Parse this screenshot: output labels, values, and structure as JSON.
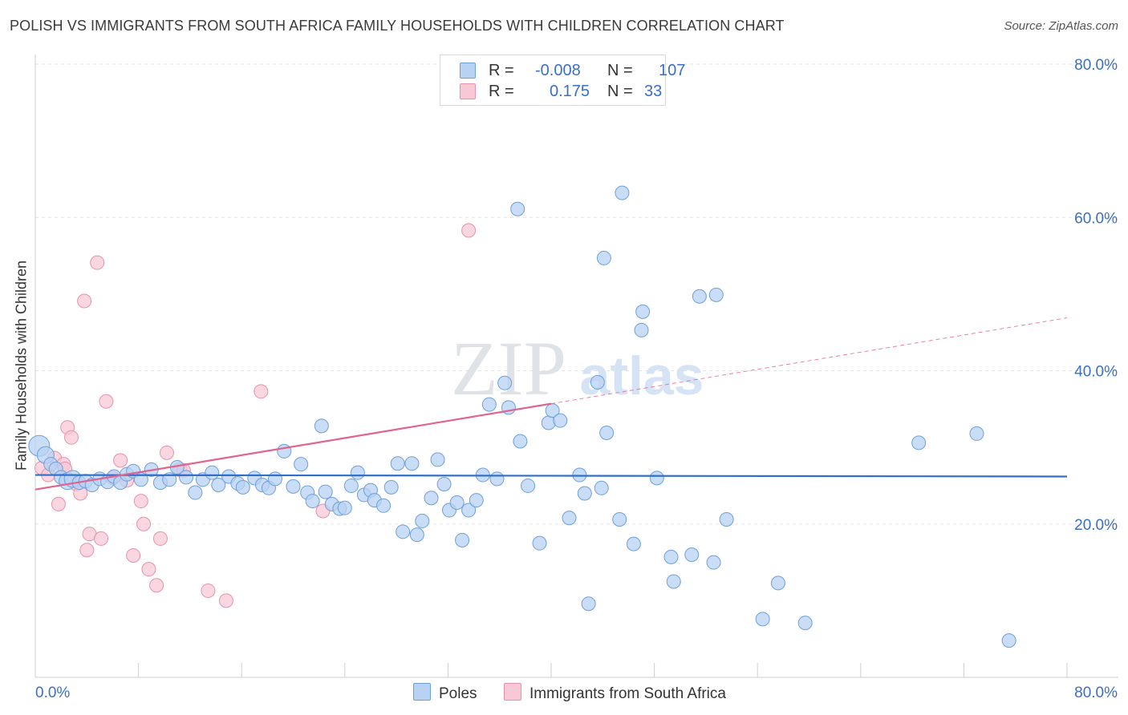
{
  "header": {
    "title": "POLISH VS IMMIGRANTS FROM SOUTH AFRICA FAMILY HOUSEHOLDS WITH CHILDREN CORRELATION CHART",
    "source": "Source: ZipAtlas.com"
  },
  "watermark": {
    "zip": "ZIP",
    "atlas": "atlas"
  },
  "stats_legend": {
    "rows": [
      {
        "r_label": "R =",
        "r_value": "-0.008",
        "n_label": "N =",
        "n_value": "107"
      },
      {
        "r_label": "R =",
        "r_value": "0.175",
        "n_label": "N =",
        "n_value": "33"
      }
    ]
  },
  "bottom_legend": {
    "series1": "Poles",
    "series2": "Immigrants from South Africa"
  },
  "colors": {
    "poles_fill": "#b8d2f3",
    "poles_stroke": "#6e9fdb",
    "poles_line": "#2f6fc9",
    "sa_fill": "#f8c8d6",
    "sa_stroke": "#e592ac",
    "sa_line": "#e0648e",
    "accent_text": "#3a6fc4"
  },
  "chart_data": {
    "type": "scatter",
    "title": "POLISH VS IMMIGRANTS FROM SOUTH AFRICA FAMILY HOUSEHOLDS WITH CHILDREN CORRELATION CHART",
    "xlabel": "",
    "ylabel": "Family Households with Children",
    "xlim": [
      0,
      80
    ],
    "ylim": [
      0,
      80
    ],
    "x_tick_labels": [
      "0.0%",
      "80.0%"
    ],
    "y_tick_labels": [
      "20.0%",
      "40.0%",
      "60.0%",
      "80.0%"
    ],
    "y_ticks": [
      20,
      40,
      60,
      80
    ],
    "grid": true,
    "legend": "top-center",
    "series": [
      {
        "name": "Poles",
        "trend": {
          "x": [
            0,
            80
          ],
          "y": [
            26.4,
            26.2
          ]
        },
        "points": [
          [
            0.3,
            30.2,
            9
          ],
          [
            0.8,
            29.0,
            6
          ],
          [
            1.2,
            27.8,
            5
          ],
          [
            1.6,
            27.2,
            5
          ],
          [
            2.0,
            26.1,
            5
          ],
          [
            2.5,
            25.6,
            6
          ],
          [
            2.9,
            25.9,
            6
          ],
          [
            3.4,
            25.4,
            5
          ],
          [
            3.9,
            25.6,
            5
          ],
          [
            4.4,
            25.1,
            5
          ],
          [
            5.0,
            25.9,
            5
          ],
          [
            5.6,
            25.5,
            5
          ],
          [
            6.1,
            26.2,
            5
          ],
          [
            6.6,
            25.4,
            5
          ],
          [
            7.1,
            26.5,
            5
          ],
          [
            7.6,
            26.9,
            5
          ],
          [
            8.2,
            25.8,
            5
          ],
          [
            9.0,
            27.1,
            5
          ],
          [
            9.7,
            25.4,
            5
          ],
          [
            10.4,
            25.8,
            5
          ],
          [
            11.0,
            27.4,
            5
          ],
          [
            11.7,
            26.1,
            5
          ],
          [
            12.4,
            24.1,
            5
          ],
          [
            13.0,
            25.8,
            5
          ],
          [
            13.7,
            26.7,
            5
          ],
          [
            14.2,
            25.1,
            5
          ],
          [
            15.0,
            26.2,
            5
          ],
          [
            15.7,
            25.3,
            5
          ],
          [
            16.1,
            24.8,
            5
          ],
          [
            17.0,
            26.0,
            5
          ],
          [
            17.6,
            25.1,
            5
          ],
          [
            18.1,
            24.7,
            5
          ],
          [
            18.6,
            25.9,
            5
          ],
          [
            19.3,
            29.5,
            5
          ],
          [
            20.0,
            24.9,
            5
          ],
          [
            20.6,
            27.8,
            5
          ],
          [
            21.1,
            24.1,
            5
          ],
          [
            21.5,
            23.0,
            5
          ],
          [
            22.2,
            32.8,
            5
          ],
          [
            22.5,
            24.2,
            5
          ],
          [
            23.0,
            22.6,
            5
          ],
          [
            23.6,
            22.0,
            5
          ],
          [
            24.0,
            22.1,
            5
          ],
          [
            24.5,
            25.0,
            5
          ],
          [
            25.0,
            26.7,
            5
          ],
          [
            25.5,
            23.8,
            5
          ],
          [
            26.0,
            24.4,
            5
          ],
          [
            26.3,
            23.1,
            5
          ],
          [
            27.0,
            22.4,
            5
          ],
          [
            27.6,
            24.8,
            5
          ],
          [
            28.1,
            27.9,
            5
          ],
          [
            28.5,
            19.0,
            5
          ],
          [
            29.2,
            27.9,
            5
          ],
          [
            29.6,
            18.6,
            5
          ],
          [
            30.0,
            20.4,
            5
          ],
          [
            30.7,
            23.4,
            5
          ],
          [
            31.2,
            28.4,
            5
          ],
          [
            31.7,
            25.2,
            5
          ],
          [
            32.1,
            21.8,
            5
          ],
          [
            32.7,
            22.8,
            5
          ],
          [
            33.1,
            17.9,
            5
          ],
          [
            33.6,
            21.8,
            5
          ],
          [
            34.2,
            23.1,
            5
          ],
          [
            34.7,
            26.4,
            5
          ],
          [
            35.2,
            35.6,
            5
          ],
          [
            35.8,
            25.9,
            5
          ],
          [
            36.4,
            38.4,
            5
          ],
          [
            36.7,
            35.2,
            5
          ],
          [
            37.4,
            61.1,
            5
          ],
          [
            37.6,
            30.8,
            5
          ],
          [
            38.2,
            25.0,
            5
          ],
          [
            39.1,
            17.5,
            5
          ],
          [
            39.8,
            33.2,
            5
          ],
          [
            40.1,
            34.8,
            5
          ],
          [
            40.7,
            33.5,
            5
          ],
          [
            41.4,
            20.8,
            5
          ],
          [
            42.2,
            26.4,
            5
          ],
          [
            42.6,
            24.0,
            5
          ],
          [
            42.9,
            9.6,
            5
          ],
          [
            43.6,
            38.5,
            5
          ],
          [
            43.9,
            24.7,
            5
          ],
          [
            44.1,
            54.7,
            5
          ],
          [
            44.3,
            31.9,
            5
          ],
          [
            45.3,
            20.6,
            5
          ],
          [
            45.5,
            63.2,
            5
          ],
          [
            46.4,
            17.4,
            5
          ],
          [
            47.1,
            47.7,
            5
          ],
          [
            47.0,
            45.3,
            5
          ],
          [
            48.2,
            26.0,
            5
          ],
          [
            49.3,
            15.7,
            5
          ],
          [
            49.5,
            12.5,
            5
          ],
          [
            50.9,
            16.0,
            5
          ],
          [
            51.5,
            49.7,
            5
          ],
          [
            52.6,
            15.0,
            5
          ],
          [
            52.8,
            49.9,
            5
          ],
          [
            53.6,
            20.6,
            5
          ],
          [
            56.4,
            7.6,
            5
          ],
          [
            57.6,
            12.3,
            5
          ],
          [
            59.7,
            7.1,
            5
          ],
          [
            68.5,
            30.6,
            5
          ],
          [
            73.0,
            31.8,
            5
          ],
          [
            75.5,
            4.8,
            5
          ]
        ]
      },
      {
        "name": "Immigrants from South Africa",
        "trend": {
          "x": [
            0,
            40
          ],
          "y": [
            24.5,
            35.7
          ],
          "dashed_to": {
            "x": 80,
            "y": 46.9
          }
        },
        "points": [
          [
            0.5,
            27.3,
            6
          ],
          [
            1.0,
            26.4,
            5
          ],
          [
            1.5,
            28.6,
            5
          ],
          [
            1.8,
            22.6,
            5
          ],
          [
            2.2,
            27.8,
            5
          ],
          [
            2.5,
            32.6,
            5
          ],
          [
            2.8,
            31.3,
            5
          ],
          [
            3.2,
            25.2,
            5
          ],
          [
            3.5,
            24.0,
            5
          ],
          [
            3.8,
            49.1,
            5
          ],
          [
            4.0,
            16.6,
            5
          ],
          [
            4.2,
            18.7,
            5
          ],
          [
            4.8,
            54.1,
            5
          ],
          [
            5.1,
            18.1,
            5
          ],
          [
            5.5,
            36.0,
            5
          ],
          [
            6.0,
            26.0,
            5
          ],
          [
            6.6,
            28.3,
            5
          ],
          [
            7.1,
            25.7,
            5
          ],
          [
            7.6,
            15.9,
            5
          ],
          [
            8.2,
            23.0,
            5
          ],
          [
            8.4,
            20.0,
            5
          ],
          [
            8.8,
            14.1,
            5
          ],
          [
            9.4,
            12.0,
            5
          ],
          [
            9.7,
            18.1,
            5
          ],
          [
            10.2,
            29.3,
            5
          ],
          [
            11.2,
            27.1,
            5
          ],
          [
            11.5,
            27.0,
            5
          ],
          [
            13.4,
            11.3,
            5
          ],
          [
            14.8,
            10.0,
            5
          ],
          [
            17.5,
            37.3,
            5
          ],
          [
            22.3,
            21.7,
            5
          ],
          [
            33.6,
            58.3,
            5
          ],
          [
            2.3,
            27.2,
            5
          ]
        ]
      }
    ]
  }
}
